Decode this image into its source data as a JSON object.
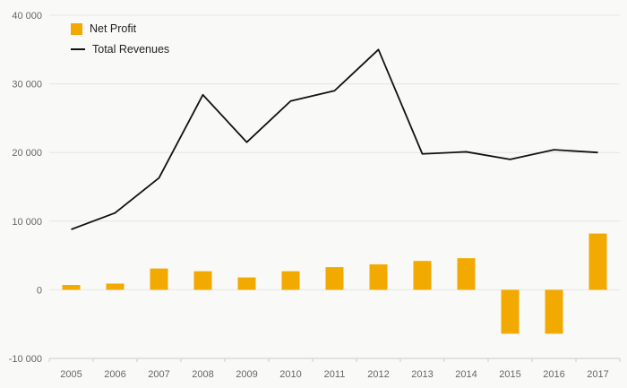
{
  "chart_data": {
    "type": "combo",
    "categories": [
      "2005",
      "2006",
      "2007",
      "2008",
      "2009",
      "2010",
      "2011",
      "2012",
      "2013",
      "2014",
      "2015",
      "2016",
      "2017"
    ],
    "series": [
      {
        "name": "Net Profit",
        "type": "bar",
        "color": "#F2A900",
        "values": [
          700,
          900,
          3100,
          2700,
          1800,
          2700,
          3300,
          3700,
          4200,
          4600,
          -6400,
          -6400,
          8200
        ]
      },
      {
        "name": "Total Revenues",
        "type": "line",
        "color": "#111111",
        "values": [
          8800,
          11200,
          16300,
          28400,
          21500,
          27500,
          29000,
          35000,
          19800,
          20100,
          19000,
          20400,
          20000
        ]
      }
    ],
    "title": "",
    "xlabel": "",
    "ylabel": "",
    "ylim": [
      -10000,
      40000
    ],
    "yticks": [
      -10000,
      0,
      10000,
      20000,
      30000,
      40000
    ],
    "ytick_labels": [
      "-10 000",
      "0",
      "10 000",
      "20 000",
      "30 000",
      "40 000"
    ],
    "grid": true,
    "legend_position": "top-left"
  },
  "colors": {
    "background": "#f9f9f7",
    "grid": "#e6e6e6",
    "axis_line": "#cccccc",
    "axis_text": "#666666",
    "bar": "#F2A900",
    "line": "#111111"
  }
}
